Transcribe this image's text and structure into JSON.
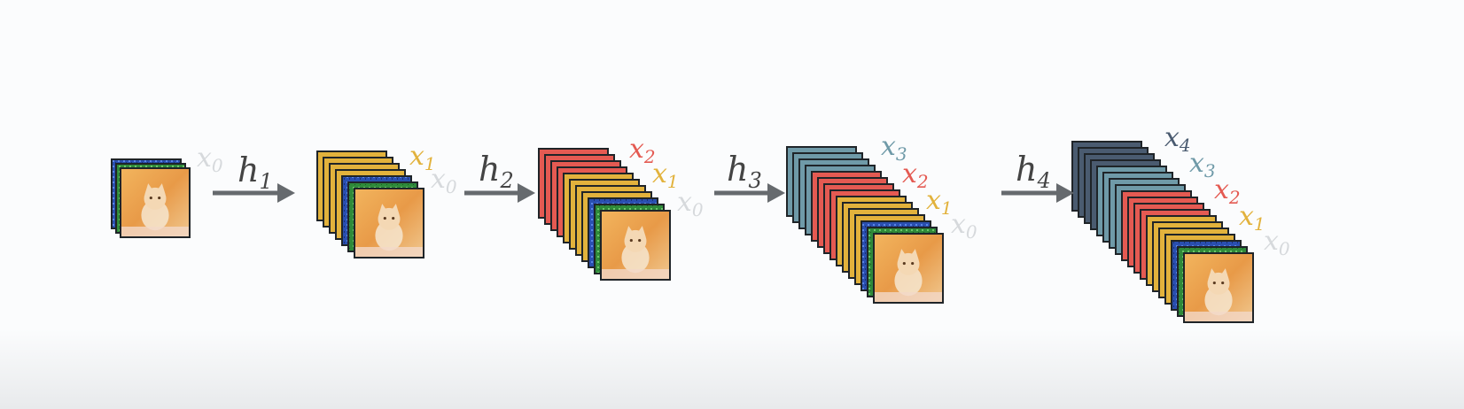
{
  "colors": {
    "x0": "#d6d9dc",
    "x1": "#e2b23c",
    "x2": "#e45a52",
    "x3": "#6f9aa8",
    "x4": "#4a5b70",
    "arrow": "#666a6e",
    "frame": "#1f2428",
    "text": "#444444"
  },
  "stages": [
    {
      "layers": [
        "x0"
      ],
      "labels": [
        "x0"
      ],
      "arrow": null
    },
    {
      "layers": [
        "x1",
        "x0"
      ],
      "labels": [
        "x1",
        "x0"
      ],
      "arrow": {
        "label": "h",
        "sub": "1"
      }
    },
    {
      "layers": [
        "x2",
        "x1",
        "x0"
      ],
      "labels": [
        "x2",
        "x1",
        "x0"
      ],
      "arrow": {
        "label": "h",
        "sub": "2"
      }
    },
    {
      "layers": [
        "x3",
        "x2",
        "x1",
        "x0"
      ],
      "labels": [
        "x3",
        "x2",
        "x1",
        "x0"
      ],
      "arrow": {
        "label": "h",
        "sub": "3"
      }
    },
    {
      "layers": [
        "x4",
        "x3",
        "x2",
        "x1",
        "x0"
      ],
      "labels": [
        "x4",
        "x3",
        "x2",
        "x1",
        "x0"
      ],
      "arrow": {
        "label": "h",
        "sub": "4"
      }
    }
  ],
  "label_text": {
    "x0": {
      "main": "x",
      "sub": "0"
    },
    "x1": {
      "main": "x",
      "sub": "1"
    },
    "x2": {
      "main": "x",
      "sub": "2"
    },
    "x3": {
      "main": "x",
      "sub": "3"
    },
    "x4": {
      "main": "x",
      "sub": "4"
    }
  },
  "image_icon": "cat-photo-icon"
}
